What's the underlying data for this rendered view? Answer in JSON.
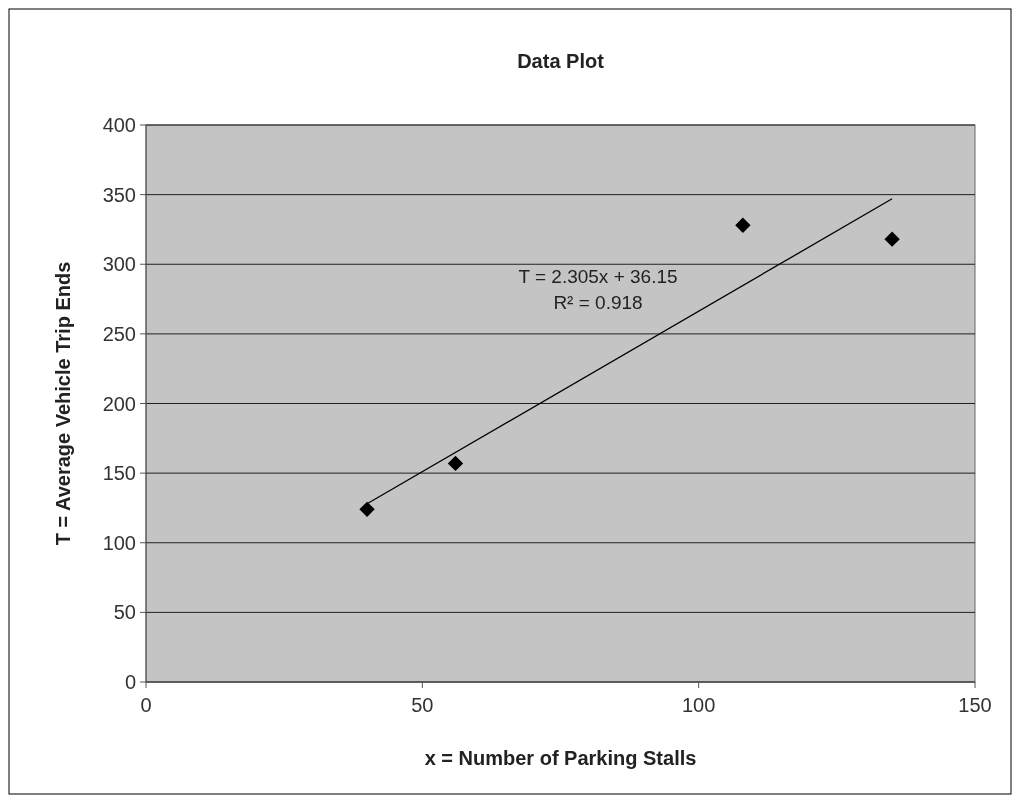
{
  "chart_data": {
    "type": "scatter",
    "title": "Data Plot",
    "xlabel": "x = Number of Parking Stalls",
    "ylabel": "T = Average Vehicle Trip Ends",
    "series": [
      {
        "color": "#000000",
        "x": [
          40,
          56,
          108,
          135
        ],
        "values": [
          124,
          157,
          328,
          318
        ],
        "marker": "diamond"
      },
      {
        "type": "line",
        "color": "#000000",
        "x": [
          40,
          135
        ],
        "values": [
          128,
          347
        ],
        "marker": "none",
        "line_style": "solid"
      }
    ],
    "annotations": [
      "T = 2.305x + 36.15",
      "R² = 0.918"
    ],
    "xlim": [
      0,
      150
    ],
    "xticks": [
      0,
      50,
      100,
      150
    ],
    "ylim": [
      0,
      400
    ],
    "yticks": [
      0,
      50,
      100,
      150,
      200,
      250,
      300,
      350,
      400
    ],
    "grid": "y"
  }
}
